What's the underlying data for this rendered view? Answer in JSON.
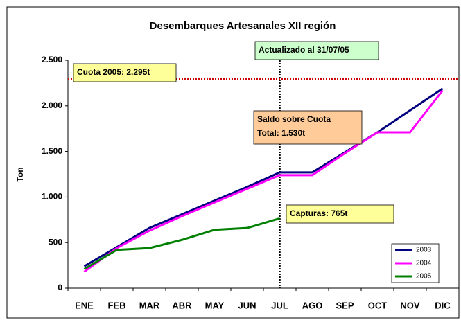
{
  "chart_data": {
    "type": "line",
    "title": "Desembarques Artesanales XII región",
    "y_label": "Ton",
    "categories": [
      "ENE",
      "FEB",
      "MAR",
      "ABR",
      "MAY",
      "JUN",
      "JUL",
      "AGO",
      "SEP",
      "OCT",
      "NOV",
      "DIC"
    ],
    "series": [
      {
        "name": "2003",
        "color": "#000080",
        "values": [
          240,
          450,
          660,
          810,
          960,
          1110,
          1270,
          1270,
          1490,
          1710,
          1950,
          2190
        ]
      },
      {
        "name": "2004",
        "color": "#ff00ff",
        "values": [
          180,
          440,
          630,
          790,
          940,
          1090,
          1240,
          1240,
          1480,
          1710,
          1710,
          2170
        ]
      },
      {
        "name": "2005",
        "color": "#008000",
        "values": [
          210,
          420,
          440,
          530,
          640,
          660,
          765,
          null,
          null,
          null,
          null,
          null
        ]
      }
    ],
    "ylim": [
      0,
      2500
    ],
    "yticks": [
      0,
      500,
      {
        "value": 1000,
        "label": "1.000"
      },
      {
        "value": 1500,
        "label": "1.500"
      },
      {
        "value": 2000,
        "label": "2.000"
      },
      {
        "value": 2500,
        "label": "2.500"
      }
    ],
    "reference_line": {
      "value": 2295,
      "color": "#cc0000"
    },
    "marker_index": 6,
    "annotations": [
      {
        "lines": [
          "Actualizado al 31/07/05"
        ],
        "color": "#ccffcc"
      },
      {
        "lines": [
          "Cuota 2005: 2.295t"
        ],
        "color": "#ffff99"
      },
      {
        "lines": [
          "Saldo sobre Cuota",
          "Total: 1.530t"
        ],
        "color": "#ffcc99"
      },
      {
        "lines": [
          "Capturas: 765t"
        ],
        "color": "#ffff99"
      }
    ],
    "legend": "bottom-right"
  }
}
